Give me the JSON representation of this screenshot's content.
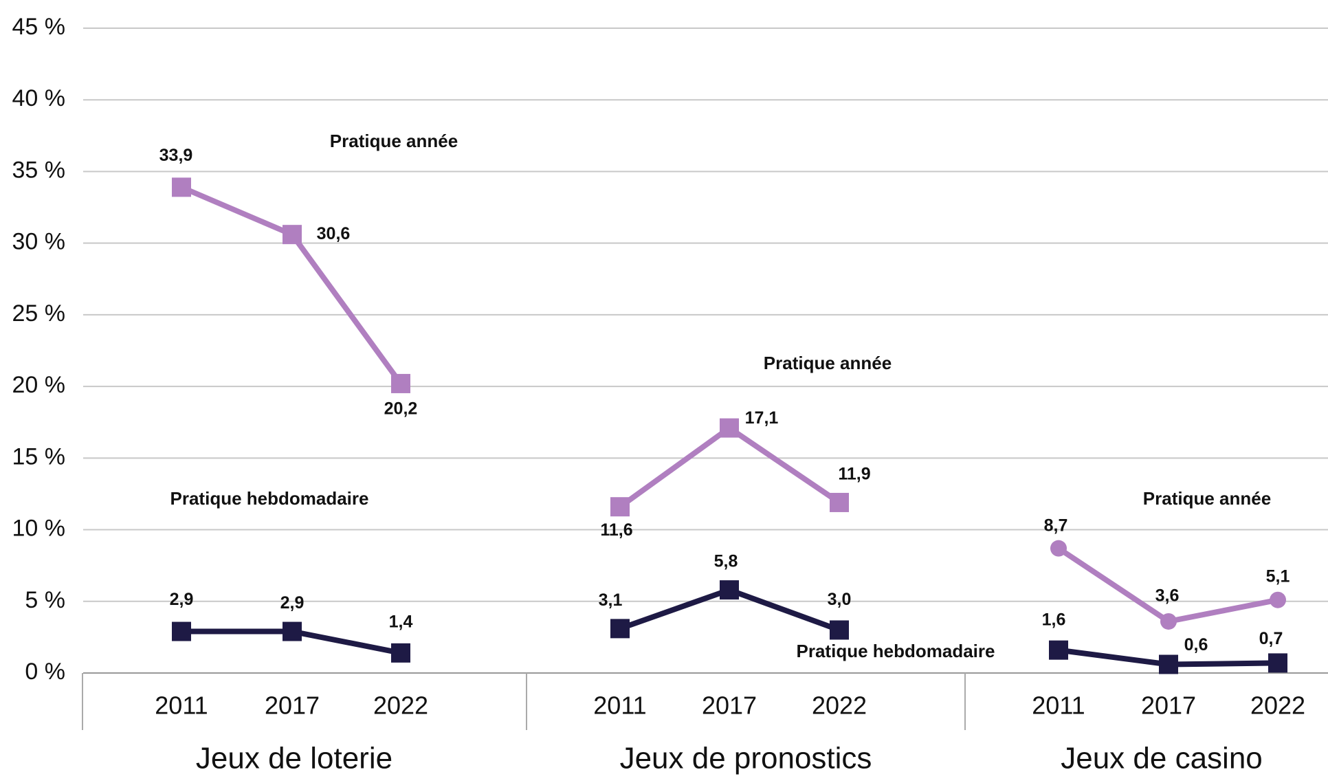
{
  "chart_data": {
    "type": "line",
    "ylim": [
      0,
      45
    ],
    "yticks": [
      {
        "value": 0,
        "label": "0 %"
      },
      {
        "value": 5,
        "label": "5 %"
      },
      {
        "value": 10,
        "label": "10 %"
      },
      {
        "value": 15,
        "label": "15 %"
      },
      {
        "value": 20,
        "label": "20 %"
      },
      {
        "value": 25,
        "label": "25 %"
      },
      {
        "value": 30,
        "label": "30 %"
      },
      {
        "value": 35,
        "label": "35 %"
      },
      {
        "value": 40,
        "label": "40 %"
      },
      {
        "value": 45,
        "label": "45 %"
      }
    ],
    "grid": true,
    "groups": [
      {
        "name": "Jeux de loterie",
        "categories": [
          "2011",
          "2017",
          "2022"
        ],
        "series": [
          {
            "name": "Pratique année",
            "color": "#b07fc0",
            "marker": "square",
            "values": [
              33.9,
              30.6,
              20.2
            ],
            "value_labels": [
              "33,9",
              "30,6",
              "20,2"
            ]
          },
          {
            "name": "Pratique hebdomadaire",
            "color": "#1e1a45",
            "marker": "square",
            "values": [
              2.9,
              2.9,
              1.4
            ],
            "value_labels": [
              "2,9",
              "2,9",
              "1,4"
            ]
          }
        ]
      },
      {
        "name": "Jeux de pronostics",
        "categories": [
          "2011",
          "2017",
          "2022"
        ],
        "series": [
          {
            "name": "Pratique année",
            "color": "#b07fc0",
            "marker": "square",
            "values": [
              11.6,
              17.1,
              11.9
            ],
            "value_labels": [
              "11,6",
              "17,1",
              "11,9"
            ]
          },
          {
            "name": "Pratique hebdomadaire",
            "color": "#1e1a45",
            "marker": "square",
            "values": [
              3.1,
              5.8,
              3.0
            ],
            "value_labels": [
              "3,1",
              "5,8",
              "3,0"
            ]
          }
        ]
      },
      {
        "name": "Jeux de casino",
        "categories": [
          "2011",
          "2017",
          "2022"
        ],
        "series": [
          {
            "name": "Pratique année",
            "color": "#b07fc0",
            "marker": "circle",
            "values": [
              8.7,
              3.6,
              5.1
            ],
            "value_labels": [
              "8,7",
              "3,6",
              "5,1"
            ]
          },
          {
            "color": "#1e1a45",
            "marker": "square",
            "values": [
              1.6,
              0.6,
              0.7
            ],
            "value_labels": [
              "1,6",
              "0,6",
              "0,7"
            ]
          }
        ]
      }
    ]
  }
}
